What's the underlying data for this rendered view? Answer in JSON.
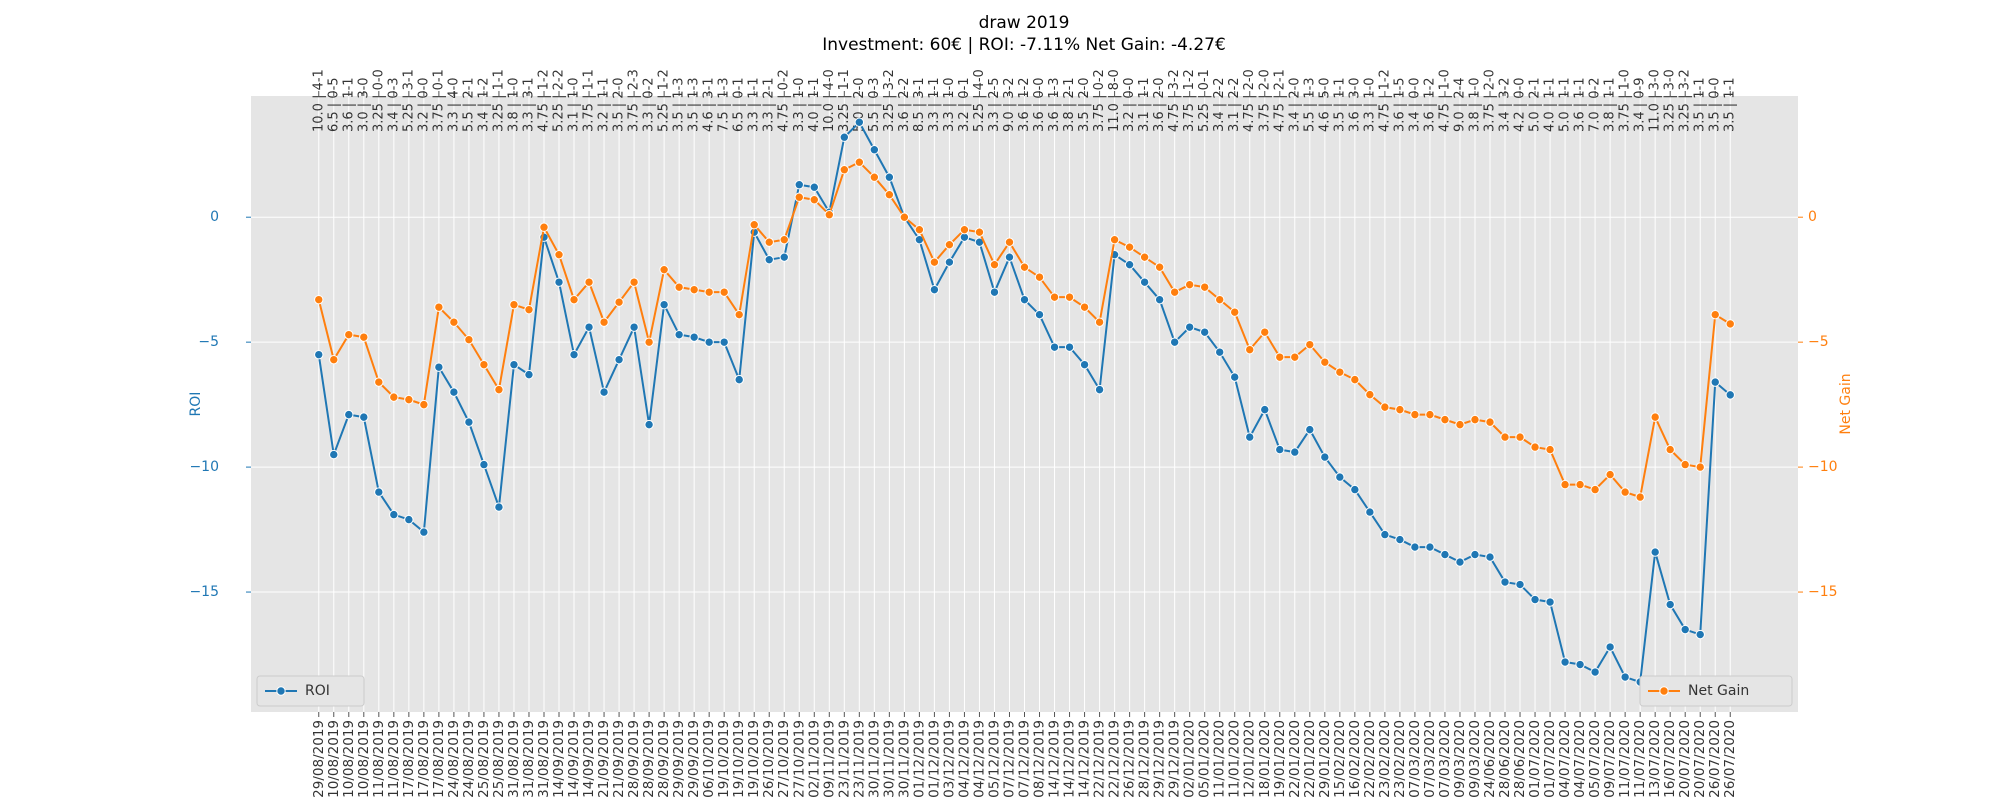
{
  "chart_data": {
    "type": "line",
    "title": "draw 2019",
    "subtitle": "Investment: 60€ | ROI: -7.11% Net Gain: -4.27€",
    "y_label": "ROI",
    "y2_label": "Net Gain",
    "categories": [
      "29/08/2019",
      "10/08/2019",
      "10/08/2019",
      "10/08/2019",
      "11/08/2019",
      "11/08/2019",
      "17/08/2019",
      "17/08/2019",
      "17/08/2019",
      "24/08/2019",
      "24/08/2019",
      "25/08/2019",
      "25/08/2019",
      "31/08/2019",
      "31/08/2019",
      "31/08/2019",
      "14/09/2019",
      "14/09/2019",
      "14/09/2019",
      "21/09/2019",
      "21/09/2019",
      "28/09/2019",
      "28/09/2019",
      "28/09/2019",
      "29/09/2019",
      "29/09/2019",
      "06/10/2019",
      "19/10/2019",
      "19/10/2019",
      "19/10/2019",
      "26/10/2019",
      "27/10/2019",
      "27/10/2019",
      "02/11/2019",
      "09/11/2019",
      "23/11/2019",
      "23/11/2019",
      "30/11/2019",
      "30/11/2019",
      "30/11/2019",
      "01/12/2019",
      "01/12/2019",
      "03/12/2019",
      "04/12/2019",
      "04/12/2019",
      "05/12/2019",
      "07/12/2019",
      "07/12/2019",
      "08/12/2019",
      "14/12/2019",
      "14/12/2019",
      "14/12/2019",
      "22/12/2019",
      "22/12/2019",
      "26/12/2019",
      "28/12/2019",
      "29/12/2019",
      "29/12/2019",
      "02/01/2020",
      "05/01/2020",
      "11/01/2020",
      "11/01/2020",
      "12/01/2020",
      "18/01/2020",
      "19/01/2020",
      "22/01/2020",
      "22/01/2020",
      "29/01/2020",
      "15/02/2020",
      "16/02/2020",
      "22/02/2020",
      "23/02/2020",
      "23/02/2020",
      "07/03/2020",
      "07/03/2020",
      "07/03/2020",
      "09/03/2020",
      "09/03/2020",
      "24/06/2020",
      "28/06/2020",
      "28/06/2020",
      "01/07/2020",
      "01/07/2020",
      "04/07/2020",
      "04/07/2020",
      "05/07/2020",
      "09/07/2020",
      "11/07/2020",
      "11/07/2020",
      "13/07/2020",
      "16/07/2020",
      "20/07/2020",
      "20/07/2020",
      "26/07/2020",
      "26/07/2020"
    ],
    "x2_categories": [
      "10.0 | 4-1",
      "6.5 | 0-5",
      "3.6 | 1-1",
      "3.0 | 3-0",
      "3.25 | 0-0",
      "3.4 | 0-3",
      "5.25 | 3-1",
      "3.2 | 0-0",
      "3.75 | 0-1",
      "3.3 | 4-0",
      "5.5 | 2-1",
      "3.4 | 1-2",
      "3.25 | 1-1",
      "3.8 | 1-0",
      "3.3 | 3-1",
      "4.75 | 1-2",
      "5.25 | 2-2",
      "3.1 | 1-0",
      "3.75 | 1-1",
      "3.2 | 1-1",
      "3.5 | 2-0",
      "3.75 | 2-3",
      "3.3 | 0-2",
      "5.25 | 1-2",
      "3.5 | 1-3",
      "3.5 | 1-3",
      "4.6 | 3-1",
      "7.5 | 1-3",
      "6.5 | 0-1",
      "3.3 | 1-1",
      "3.3 | 2-1",
      "4.75 | 0-2",
      "3.3 | 1-0",
      "4.0 | 1-1",
      "10.0 | 4-0",
      "3.25 | 1-1",
      "5.0 | 2-0",
      "5.5 | 0-3",
      "3.25 | 3-2",
      "3.6 | 2-2",
      "8.5 | 3-1",
      "3.3 | 1-1",
      "3.3 | 1-0",
      "3.2 | 0-1",
      "5.25 | 4-0",
      "3.3 | 2-5",
      "9.0 | 3-2",
      "3.6 | 1-2",
      "3.6 | 0-0",
      "3.6 | 1-3",
      "3.8 | 2-1",
      "3.5 | 2-0",
      "3.75 | 0-2",
      "11.0 | 8-0",
      "3.2 | 0-0",
      "3.1 | 1-1",
      "3.6 | 2-0",
      "4.75 | 3-2",
      "3.75 | 1-2",
      "5.25 | 0-1",
      "3.4 | 2-2",
      "3.1 | 2-2",
      "4.75 | 2-0",
      "3.75 | 2-0",
      "4.75 | 2-1",
      "3.4 | 2-0",
      "5.5 | 1-3",
      "4.6 | 5-0",
      "3.5 | 1-1",
      "3.6 | 3-0",
      "3.3 | 1-0",
      "4.75 | 1-2",
      "3.6 | 1-5",
      "3.4 | 0-0",
      "3.6 | 1-2",
      "4.75 | 1-0",
      "9.0 | 2-4",
      "3.8 | 1-0",
      "3.75 | 2-0",
      "3.4 | 3-2",
      "4.2 | 0-0",
      "5.0 | 2-1",
      "4.0 | 1-1",
      "5.0 | 1-1",
      "3.6 | 1-1",
      "7.0 | 0-2",
      "3.8 | 1-1",
      "3.75 | 1-0",
      "3.4 | 0-9",
      "11.0 | 3-0",
      "3.25 | 3-0",
      "3.25 | 3-2",
      "3.5 | 1-1",
      "3.5 | 0-0",
      "3.5 | 1-1"
    ],
    "series": [
      {
        "name": "ROI",
        "color": "#1f77b4",
        "axis": "y",
        "legend": "lower left",
        "values": [
          -5.5,
          -9.5,
          -7.9,
          -8.0,
          -11.0,
          -11.9,
          -12.1,
          -12.6,
          -6.0,
          -7.0,
          -8.2,
          -9.9,
          -11.6,
          -5.9,
          -6.3,
          -0.8,
          -2.6,
          -5.5,
          -4.4,
          -7.0,
          -5.7,
          -4.4,
          -8.3,
          -3.5,
          -4.7,
          -4.8,
          -5.0,
          -5.0,
          -6.5,
          -0.6,
          -1.7,
          -1.6,
          1.3,
          1.2,
          0.2,
          3.2,
          3.8,
          2.7,
          1.6,
          0.0,
          -0.9,
          -2.9,
          -1.8,
          -0.8,
          -1.0,
          -3.0,
          -1.6,
          -3.3,
          -3.9,
          -5.2,
          -5.2,
          -5.9,
          -6.9,
          -1.5,
          -1.9,
          -2.6,
          -3.3,
          -5.0,
          -4.4,
          -4.6,
          -5.4,
          -6.4,
          -8.8,
          -7.7,
          -9.3,
          -9.4,
          -8.5,
          -9.6,
          -10.4,
          -10.9,
          -11.8,
          -12.7,
          -12.9,
          -13.2,
          -13.2,
          -13.5,
          -13.8,
          -13.5,
          -13.6,
          -14.6,
          -14.7,
          -15.3,
          -15.4,
          -17.8,
          -17.9,
          -18.2,
          -17.2,
          -18.4,
          -18.6,
          -13.4,
          -15.5,
          -16.5,
          -16.7,
          -6.6,
          -7.11
        ]
      },
      {
        "name": "Net Gain",
        "color": "#ff7f0e",
        "axis": "y2",
        "legend": "lower right",
        "values": [
          -3.3,
          -5.7,
          -4.7,
          -4.8,
          -6.6,
          -7.2,
          -7.3,
          -7.5,
          -3.6,
          -4.2,
          -4.9,
          -5.9,
          -6.9,
          -3.5,
          -3.7,
          -0.4,
          -1.5,
          -3.3,
          -2.6,
          -4.2,
          -3.4,
          -2.6,
          -5.0,
          -2.1,
          -2.8,
          -2.9,
          -3.0,
          -3.0,
          -3.9,
          -0.3,
          -1.0,
          -0.9,
          0.8,
          0.7,
          0.1,
          1.9,
          2.2,
          1.6,
          0.9,
          0.0,
          -0.5,
          -1.8,
          -1.1,
          -0.5,
          -0.6,
          -1.9,
          -1.0,
          -2.0,
          -2.4,
          -3.2,
          -3.2,
          -3.6,
          -4.2,
          -0.9,
          -1.2,
          -1.6,
          -2.0,
          -3.0,
          -2.7,
          -2.8,
          -3.3,
          -3.8,
          -5.3,
          -4.6,
          -5.6,
          -5.6,
          -5.1,
          -5.8,
          -6.2,
          -6.5,
          -7.1,
          -7.6,
          -7.7,
          -7.9,
          -7.9,
          -8.1,
          -8.3,
          -8.1,
          -8.2,
          -8.8,
          -8.8,
          -9.2,
          -9.3,
          -10.7,
          -10.7,
          -10.9,
          -10.3,
          -11.0,
          -11.2,
          -8.0,
          -9.3,
          -9.9,
          -10.0,
          -3.9,
          -4.27
        ]
      }
    ],
    "ylim": [
      -19.8,
      4.85
    ],
    "yticks": [
      {
        "value": -15,
        "label": "−15"
      },
      {
        "value": -10,
        "label": "−10"
      },
      {
        "value": -5,
        "label": "−5"
      },
      0
    ],
    "y2lim": [
      -19.8,
      4.85
    ],
    "y2ticks": [
      {
        "value": -15,
        "label": "−15"
      },
      {
        "value": -10,
        "label": "−10"
      },
      {
        "value": -5,
        "label": "−5"
      },
      0
    ],
    "grid": true
  }
}
